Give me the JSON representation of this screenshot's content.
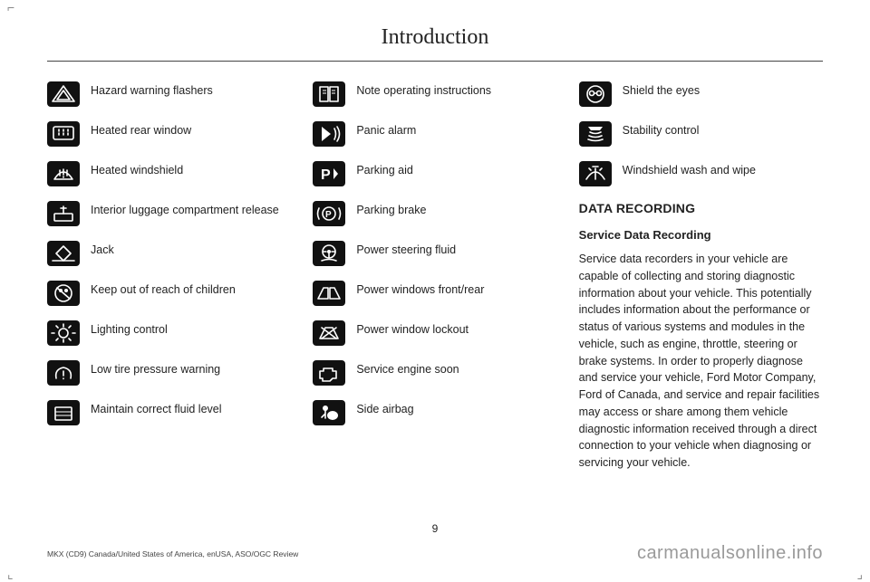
{
  "title": "Introduction",
  "col1": [
    {
      "id": "hazard-warning-flashers",
      "label": "Hazard warning flashers",
      "icon": "hazard"
    },
    {
      "id": "heated-rear-window",
      "label": "Heated rear window",
      "icon": "rear-defrost"
    },
    {
      "id": "heated-windshield",
      "label": "Heated windshield",
      "icon": "front-defrost"
    },
    {
      "id": "interior-luggage-release",
      "label": "Interior luggage compartment release",
      "icon": "trunk"
    },
    {
      "id": "jack",
      "label": "Jack",
      "icon": "jack"
    },
    {
      "id": "keep-out-of-reach",
      "label": "Keep out of reach of children",
      "icon": "no-children"
    },
    {
      "id": "lighting-control",
      "label": "Lighting control",
      "icon": "light"
    },
    {
      "id": "low-tire-pressure",
      "label": "Low tire pressure warning",
      "icon": "tpms"
    },
    {
      "id": "maintain-fluid-level",
      "label": "Maintain correct fluid level",
      "icon": "fluid"
    }
  ],
  "col2": [
    {
      "id": "note-operating-instructions",
      "label": "Note operating instructions",
      "icon": "manual"
    },
    {
      "id": "panic-alarm",
      "label": "Panic alarm",
      "icon": "alarm"
    },
    {
      "id": "parking-aid",
      "label": "Parking aid",
      "icon": "parkaid"
    },
    {
      "id": "parking-brake",
      "label": "Parking brake",
      "icon": "pbrake"
    },
    {
      "id": "power-steering-fluid",
      "label": "Power steering fluid",
      "icon": "steering"
    },
    {
      "id": "power-windows",
      "label": "Power windows front/rear",
      "icon": "windows"
    },
    {
      "id": "power-window-lockout",
      "label": "Power window lockout",
      "icon": "winlock"
    },
    {
      "id": "service-engine-soon",
      "label": "Service engine soon",
      "icon": "engine"
    },
    {
      "id": "side-airbag",
      "label": "Side airbag",
      "icon": "airbag"
    }
  ],
  "col3_icons": [
    {
      "id": "shield-the-eyes",
      "label": "Shield the eyes",
      "icon": "eyes"
    },
    {
      "id": "stability-control",
      "label": "Stability control",
      "icon": "stability"
    },
    {
      "id": "windshield-wash-wipe",
      "label": "Windshield wash and wipe",
      "icon": "wiper"
    }
  ],
  "col3_text": {
    "h1": "DATA RECORDING",
    "h2": "Service Data Recording",
    "body": "Service data recorders in your vehicle are capable of collecting and storing diagnostic information about your vehicle. This potentially includes information about the performance or status of various systems and modules in the vehicle, such as engine, throttle, steering or brake systems. In order to properly diagnose and service your vehicle, Ford Motor Company, Ford of Canada, and service and repair facilities may access or share among them vehicle diagnostic information received through a direct connection to your vehicle when diagnosing or servicing your vehicle."
  },
  "page_number": "9",
  "footer_left": "MKX (CD9) Canada/United States of America, enUSA, ASO/OGC Review",
  "footer_right": "carmanualsonline.info",
  "icon_bg": "#111111",
  "icon_fg": "#ffffff"
}
